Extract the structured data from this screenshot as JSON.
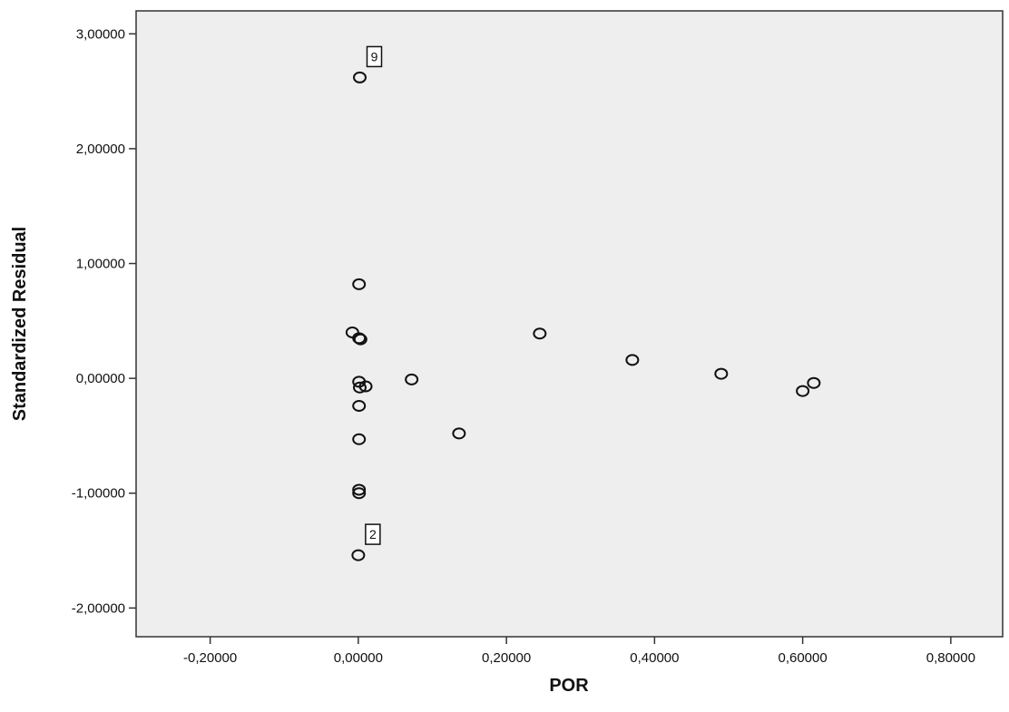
{
  "chart_data": {
    "type": "scatter",
    "xlabel": "POR",
    "ylabel": "Standardized Residual",
    "xlim": [
      -0.3,
      0.87
    ],
    "ylim": [
      -2.25,
      3.2
    ],
    "x_ticks": [
      -0.2,
      0.0,
      0.2,
      0.4,
      0.6,
      0.8
    ],
    "x_tick_labels": [
      "-0,20000",
      "0,00000",
      "0,20000",
      "0,40000",
      "0,60000",
      "0,80000"
    ],
    "y_ticks": [
      -2.0,
      -1.0,
      0.0,
      1.0,
      2.0,
      3.0
    ],
    "y_tick_labels": [
      "-2,00000",
      "-1,00000",
      "0,00000",
      "1,00000",
      "2,00000",
      "3,00000"
    ],
    "grid": false,
    "legend": "none",
    "plot_background": "#eeeeee",
    "series": [
      {
        "points": [
          {
            "x": 0.002,
            "y": 2.62
          },
          {
            "x": 0.001,
            "y": 0.82
          },
          {
            "x": -0.008,
            "y": 0.4
          },
          {
            "x": 0.001,
            "y": 0.35
          },
          {
            "x": 0.003,
            "y": 0.34
          },
          {
            "x": 0.001,
            "y": -0.03
          },
          {
            "x": 0.002,
            "y": -0.08
          },
          {
            "x": 0.01,
            "y": -0.07
          },
          {
            "x": 0.072,
            "y": -0.01
          },
          {
            "x": 0.001,
            "y": -0.24
          },
          {
            "x": 0.001,
            "y": -0.53
          },
          {
            "x": 0.001,
            "y": -0.97
          },
          {
            "x": 0.001,
            "y": -1.0
          },
          {
            "x": 0.0,
            "y": -1.54
          },
          {
            "x": 0.136,
            "y": -0.48
          },
          {
            "x": 0.245,
            "y": 0.39
          },
          {
            "x": 0.37,
            "y": 0.16
          },
          {
            "x": 0.49,
            "y": 0.04
          },
          {
            "x": 0.6,
            "y": -0.11
          },
          {
            "x": 0.615,
            "y": -0.04
          }
        ]
      }
    ],
    "annotations": [
      {
        "text": "9",
        "x": 0.002,
        "y": 2.62
      },
      {
        "text": "2",
        "x": 0.0,
        "y": -1.54
      }
    ]
  }
}
